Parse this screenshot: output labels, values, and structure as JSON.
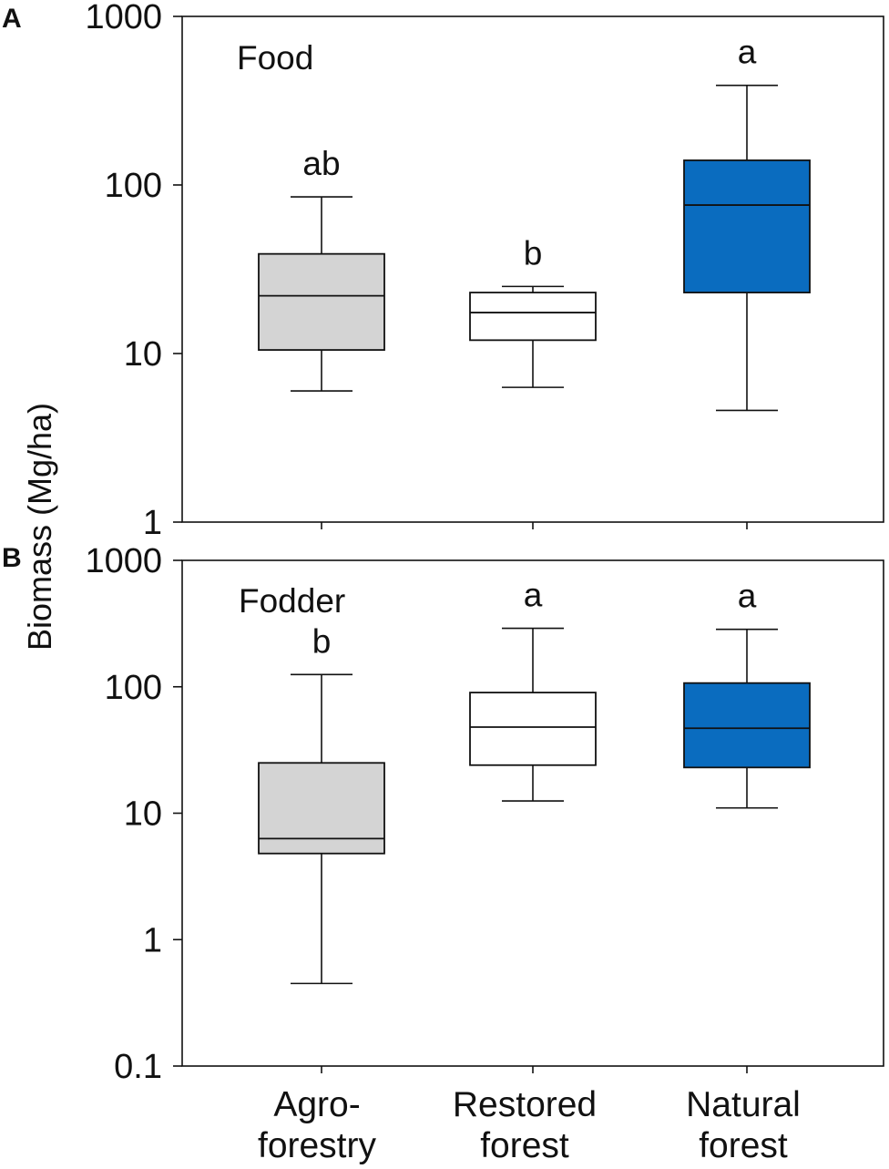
{
  "colors": {
    "Agro-forestry": "#d4d4d4",
    "Restored forest": "#ffffff",
    "Natural forest": "#0a6cbf",
    "stroke": "#111111"
  },
  "chart_data": {
    "type": "boxplot",
    "ylabel": "Biomass (Mg/ha)",
    "yscale": "log",
    "categories": [
      "Agro-",
      "Restored",
      "Natural"
    ],
    "categories_line2": [
      "forestry",
      "forest",
      "forest"
    ],
    "series_keys": [
      "Agro-forestry",
      "Restored forest",
      "Natural forest"
    ],
    "panels": [
      {
        "letter": "A",
        "title": "Food",
        "ylim": [
          1,
          1000
        ],
        "yticks": [
          1,
          10,
          100,
          1000
        ],
        "yticklabels": [
          "1",
          "10",
          "100",
          "1000"
        ],
        "boxes": [
          {
            "category": "Agro-forestry",
            "whisker_low": 6,
            "q1": 10.5,
            "median": 22,
            "q3": 39,
            "whisker_high": 85,
            "letter": "ab"
          },
          {
            "category": "Restored forest",
            "whisker_low": 6.3,
            "q1": 12,
            "median": 17.5,
            "q3": 23,
            "whisker_high": 25,
            "letter": "b"
          },
          {
            "category": "Natural forest",
            "whisker_low": 4.6,
            "q1": 23,
            "median": 76,
            "q3": 140,
            "whisker_high": 390,
            "letter": "a"
          }
        ]
      },
      {
        "letter": "B",
        "title": "Fodder",
        "ylim": [
          0.1,
          1000
        ],
        "yticks": [
          0.1,
          1,
          10,
          100,
          1000
        ],
        "yticklabels": [
          "0.1",
          "1",
          "10",
          "100",
          "1000"
        ],
        "boxes": [
          {
            "category": "Agro-forestry",
            "whisker_low": 0.45,
            "q1": 4.8,
            "median": 6.3,
            "q3": 25,
            "whisker_high": 125,
            "letter": "b"
          },
          {
            "category": "Restored forest",
            "whisker_low": 12.5,
            "q1": 24,
            "median": 48,
            "q3": 90,
            "whisker_high": 290,
            "letter": "a"
          },
          {
            "category": "Natural forest",
            "whisker_low": 11,
            "q1": 23,
            "median": 47,
            "q3": 107,
            "whisker_high": 285,
            "letter": "a"
          }
        ]
      }
    ]
  }
}
